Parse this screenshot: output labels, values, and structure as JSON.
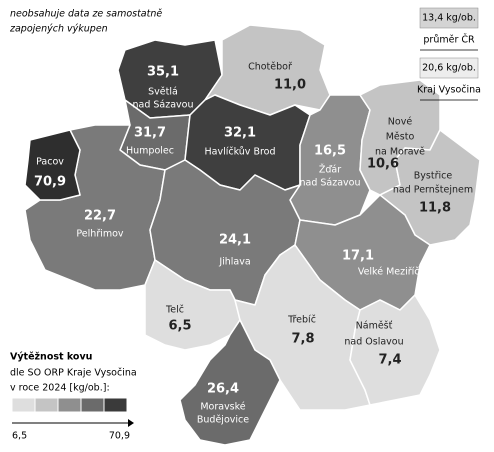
{
  "note": [
    "neobsahuje data ze samostatně",
    "zapojených výkupen"
  ],
  "reference": [
    {
      "value": "13,4 kg/ob.",
      "label": "průměr ČR",
      "color": "#d4d4d4"
    },
    {
      "value": "20,6 kg/ob.",
      "label": "Kraj Vysočina",
      "color": "#ededed"
    }
  ],
  "legend": {
    "title": "Výtěžnost kovu",
    "subtitle": [
      "dle SO ORP Kraje Vysočina",
      "v roce 2024 [kg/ob.]:"
    ],
    "colors": [
      "#dedede",
      "#c4c4c4",
      "#8f8f8f",
      "#6b6b6b",
      "#3a3a3a"
    ],
    "scale_min": {
      "value": 6.5,
      "label": "6,5"
    },
    "scale_max": {
      "value": 70.9,
      "label": "70,9"
    }
  },
  "regions": [
    {
      "name": [
        "Světlá",
        "nad Sázavou"
      ],
      "value": 35.1,
      "value_label": "35,1",
      "color": "#3f3f3f"
    },
    {
      "name": [
        "Chotěboř"
      ],
      "value": 11.0,
      "value_label": "11,0",
      "color": "#c4c4c4"
    },
    {
      "name": [
        "Humpolec"
      ],
      "value": 31.7,
      "value_label": "31,7",
      "color": "#6b6b6b"
    },
    {
      "name": [
        "Havlíčkův Brod"
      ],
      "value": 32.1,
      "value_label": "32,1",
      "color": "#3f3f3f"
    },
    {
      "name": [
        "Pacov"
      ],
      "value": 70.9,
      "value_label": "70,9",
      "color": "#2e2e2e"
    },
    {
      "name": [
        "Pelhřimov"
      ],
      "value": 22.7,
      "value_label": "22,7",
      "color": "#7a7a7a"
    },
    {
      "name": [
        "Žďár",
        "nad Sázavou"
      ],
      "value": 16.5,
      "value_label": "16,5",
      "color": "#8f8f8f"
    },
    {
      "name": [
        "Nové",
        "Město",
        "na Moravě"
      ],
      "value": 10.6,
      "value_label": "10,6",
      "color": "#c4c4c4"
    },
    {
      "name": [
        "Bystřice",
        "nad Pernštejnem"
      ],
      "value": 11.8,
      "value_label": "11,8",
      "color": "#c4c4c4"
    },
    {
      "name": [
        "Jihlava"
      ],
      "value": 24.1,
      "value_label": "24,1",
      "color": "#7a7a7a"
    },
    {
      "name": [
        "Velké Meziříčí"
      ],
      "value": 17.1,
      "value_label": "17,1",
      "color": "#8f8f8f"
    },
    {
      "name": [
        "Telč"
      ],
      "value": 6.5,
      "value_label": "6,5",
      "color": "#dedede"
    },
    {
      "name": [
        "Třebíč"
      ],
      "value": 7.8,
      "value_label": "7,8",
      "color": "#dedede"
    },
    {
      "name": [
        "Náměšť",
        "nad Oslavou"
      ],
      "value": 7.4,
      "value_label": "7,4",
      "color": "#dedede"
    },
    {
      "name": [
        "Moravské",
        "Budějovice"
      ],
      "value": 26.4,
      "value_label": "26,4",
      "color": "#6b6b6b"
    }
  ]
}
